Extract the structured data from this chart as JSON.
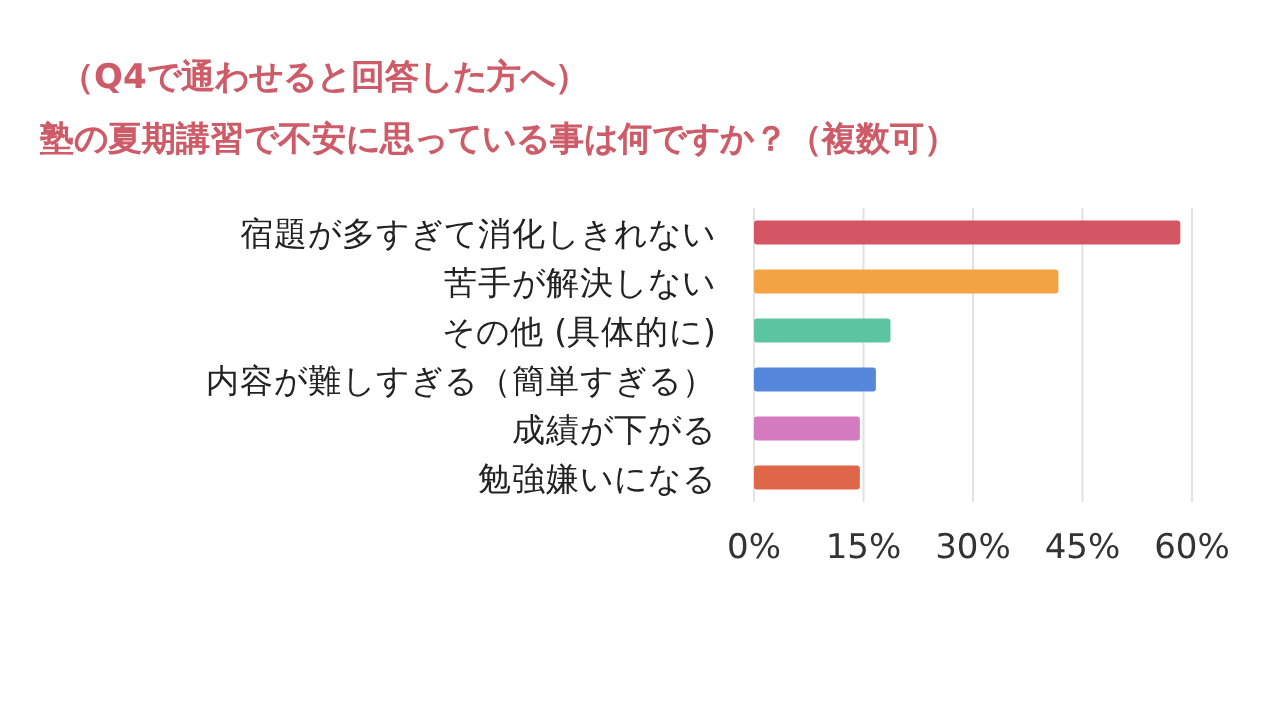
{
  "chart_data": {
    "type": "bar",
    "orientation": "horizontal",
    "title": "（Q4で通わせると回答した方へ）",
    "subtitle": "塾の夏期講習で不安に思っている事は何ですか？（複数可）",
    "categories": [
      "宿題が多すぎて消化しきれない",
      "苦手が解決しない",
      "その他 (具体的に)",
      "内容が難しすぎる（簡単すぎる）",
      "成績が下がる",
      "勉強嫌いになる"
    ],
    "values": [
      58.4,
      41.7,
      18.7,
      16.7,
      14.5,
      14.5
    ],
    "colors": [
      "#d45563",
      "#f2a444",
      "#5cc4a0",
      "#5588dd",
      "#d47bbf",
      "#e0664a"
    ],
    "xlim": [
      0,
      60
    ],
    "xticks": [
      {
        "value": 0,
        "label": "0%"
      },
      {
        "value": 15,
        "label": "15%"
      },
      {
        "value": 30,
        "label": "30%"
      },
      {
        "value": 45,
        "label": "45%"
      },
      {
        "value": 60,
        "label": "60%"
      }
    ],
    "grid": "x"
  }
}
